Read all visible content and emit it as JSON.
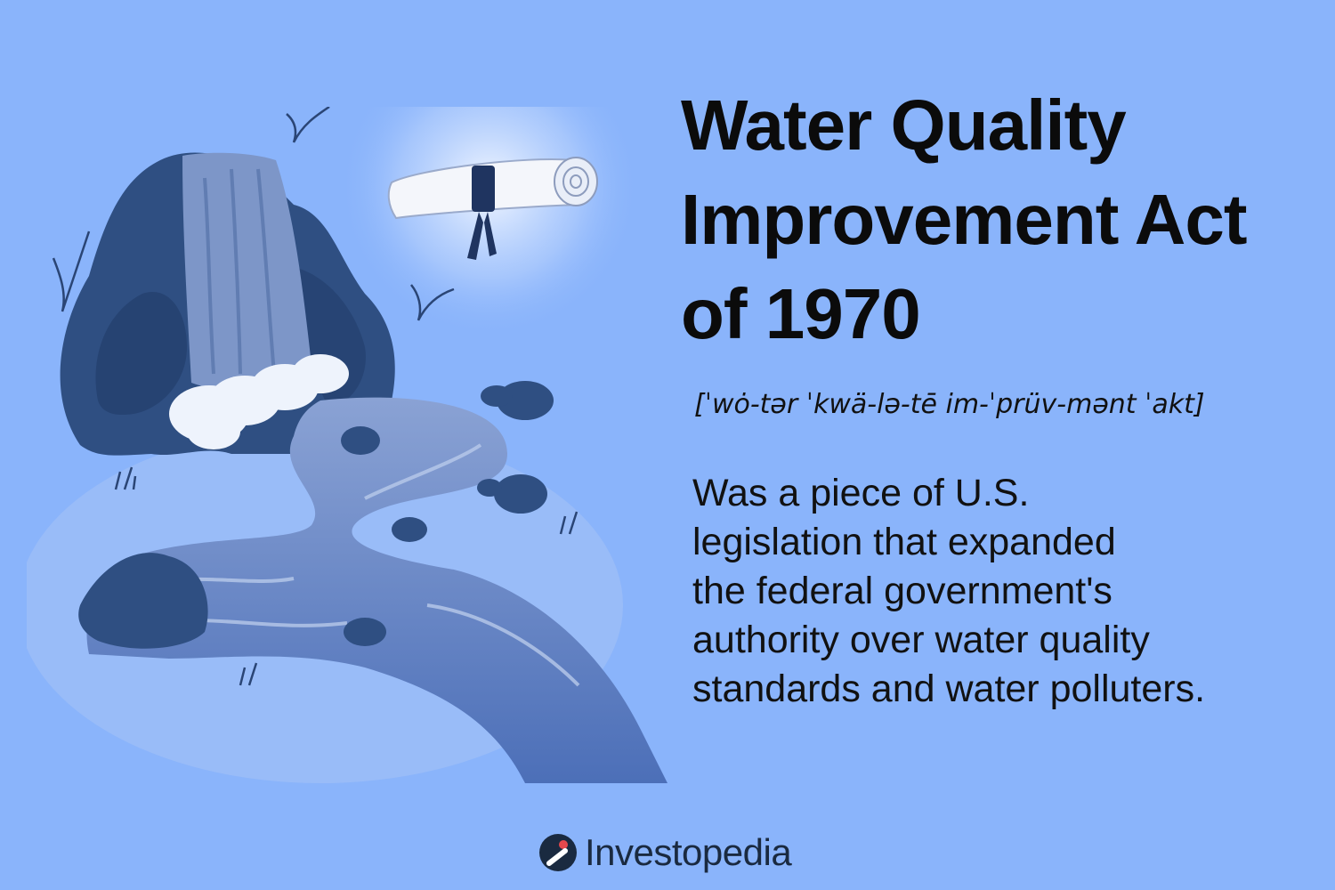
{
  "term": {
    "title_lines": [
      "Water Quality",
      "Improvement Act",
      "of 1970"
    ],
    "pronunciation": "[ˈwȯ-tər ˈkwä-lə-tē im-ˈprüv-mənt ˈakt]",
    "definition_lines": [
      "Was a piece of U.S.",
      "legislation that expanded",
      "the federal government's",
      "authority over water quality",
      "standards and water polluters."
    ]
  },
  "brand": {
    "name": "Investopedia",
    "logo_icon": "investopedia-logo-icon",
    "accent_color": "#e5484d"
  },
  "illustration": {
    "subject": "waterfall-river-scroll-illustration",
    "colors": {
      "background": "#8ab4fb",
      "rock": "#2f4f82",
      "water": "#7a97cf",
      "scroll": "#f4f6fb"
    }
  }
}
